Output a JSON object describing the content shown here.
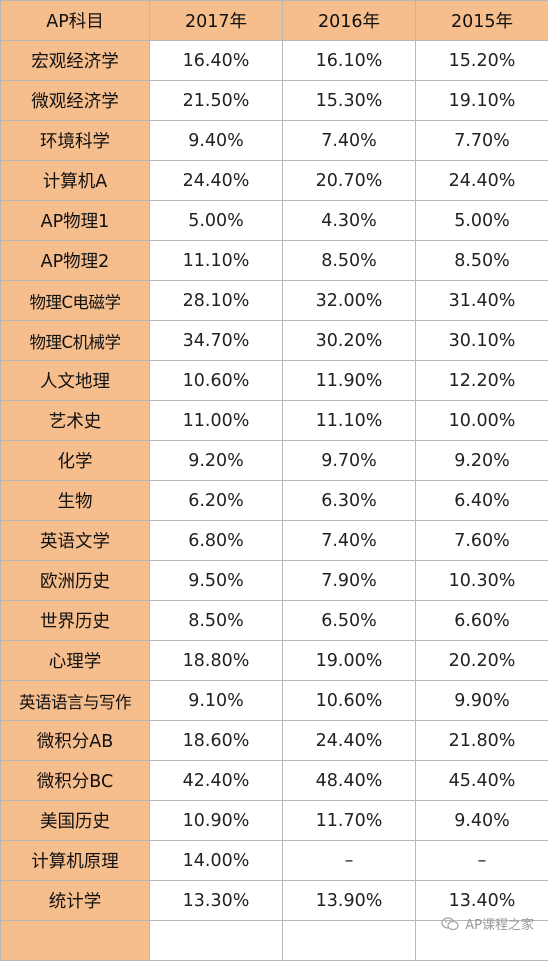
{
  "table": {
    "headers": [
      "AP科目",
      "2017年",
      "2016年",
      "2015年"
    ],
    "rows": [
      {
        "subject": "宏观经济学",
        "y2017": "16.40%",
        "y2016": "16.10%",
        "y2015": "15.20%"
      },
      {
        "subject": "微观经济学",
        "y2017": "21.50%",
        "y2016": "15.30%",
        "y2015": "19.10%"
      },
      {
        "subject": "环境科学",
        "y2017": "9.40%",
        "y2016": "7.40%",
        "y2015": "7.70%"
      },
      {
        "subject": "计算机A",
        "y2017": "24.40%",
        "y2016": "20.70%",
        "y2015": "24.40%"
      },
      {
        "subject": "AP物理1",
        "y2017": "5.00%",
        "y2016": "4.30%",
        "y2015": "5.00%"
      },
      {
        "subject": "AP物理2",
        "y2017": "11.10%",
        "y2016": "8.50%",
        "y2015": "8.50%"
      },
      {
        "subject": "物理C电磁学",
        "y2017": "28.10%",
        "y2016": "32.00%",
        "y2015": "31.40%"
      },
      {
        "subject": "物理C机械学",
        "y2017": "34.70%",
        "y2016": "30.20%",
        "y2015": "30.10%"
      },
      {
        "subject": "人文地理",
        "y2017": "10.60%",
        "y2016": "11.90%",
        "y2015": "12.20%"
      },
      {
        "subject": "艺术史",
        "y2017": "11.00%",
        "y2016": "11.10%",
        "y2015": "10.00%"
      },
      {
        "subject": "化学",
        "y2017": "9.20%",
        "y2016": "9.70%",
        "y2015": "9.20%"
      },
      {
        "subject": "生物",
        "y2017": "6.20%",
        "y2016": "6.30%",
        "y2015": "6.40%"
      },
      {
        "subject": "英语文学",
        "y2017": "6.80%",
        "y2016": "7.40%",
        "y2015": "7.60%"
      },
      {
        "subject": "欧洲历史",
        "y2017": "9.50%",
        "y2016": "7.90%",
        "y2015": "10.30%"
      },
      {
        "subject": "世界历史",
        "y2017": "8.50%",
        "y2016": "6.50%",
        "y2015": "6.60%"
      },
      {
        "subject": "心理学",
        "y2017": "18.80%",
        "y2016": "19.00%",
        "y2015": "20.20%"
      },
      {
        "subject": "英语语言与写作",
        "y2017": "9.10%",
        "y2016": "10.60%",
        "y2015": "9.90%"
      },
      {
        "subject": "微积分AB",
        "y2017": "18.60%",
        "y2016": "24.40%",
        "y2015": "21.80%"
      },
      {
        "subject": "微积分BC",
        "y2017": "42.40%",
        "y2016": "48.40%",
        "y2015": "45.40%"
      },
      {
        "subject": "美国历史",
        "y2017": "10.90%",
        "y2016": "11.70%",
        "y2015": "9.40%"
      },
      {
        "subject": "计算机原理",
        "y2017": "14.00%",
        "y2016": "–",
        "y2015": "–"
      },
      {
        "subject": "统计学",
        "y2017": "13.30%",
        "y2016": "13.90%",
        "y2015": "13.40%"
      },
      {
        "subject": "",
        "y2017": "",
        "y2016": "",
        "y2015": ""
      }
    ]
  },
  "watermark": {
    "text": "AP课程之家",
    "icon": "wechat-icon"
  },
  "colors": {
    "header_fill": "#f6bd8d",
    "subject_fill": "#f6bd8d",
    "border": "#b7b7b7",
    "value_fill": "#ffffff"
  }
}
